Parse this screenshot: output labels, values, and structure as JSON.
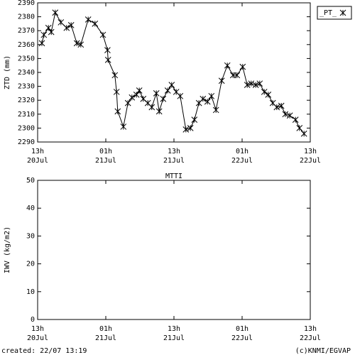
{
  "chart_data": [
    {
      "type": "line",
      "ylabel": "ZTD (mm)",
      "x": [
        0.75,
        1.1,
        1.9,
        2.4,
        3.1,
        4.1,
        5.1,
        5.9,
        6.9,
        7.6,
        8.9,
        10.1,
        11.5,
        12.3,
        12.4,
        13.6,
        13.9,
        14.1,
        15.1,
        15.9,
        16.6,
        17.4,
        17.9,
        18.6,
        19.4,
        20.1,
        20.9,
        21.4,
        22.1,
        22.9,
        23.6,
        24.4,
        25.1,
        26.1,
        26.9,
        27.6,
        28.4,
        29.1,
        29.9,
        30.6,
        31.4,
        32.4,
        33.4,
        34.4,
        35.1,
        36.1,
        36.9,
        37.6,
        38.4,
        39.1,
        39.9,
        40.6,
        41.4,
        42.1,
        42.9,
        43.6,
        44.4,
        45.4,
        46.1,
        46.9
      ],
      "series": [
        {
          "name": "_PT_",
          "color": "#000000",
          "values": [
            2361,
            2367,
            2372,
            2369,
            2383,
            2376,
            2372,
            2374,
            2361,
            2360,
            2378,
            2375,
            2367,
            2356,
            2349,
            2338,
            2326,
            2312,
            2301,
            2318,
            2322,
            2324,
            2327,
            2321,
            2318,
            2315,
            2325,
            2312,
            2321,
            2327,
            2331,
            2326,
            2323,
            2299,
            2300,
            2306,
            2318,
            2321,
            2319,
            2323,
            2313,
            2334,
            2345,
            2338,
            2338,
            2344,
            2331,
            2332,
            2331,
            2332,
            2326,
            2324,
            2318,
            2315,
            2316,
            2310,
            2309,
            2306,
            2300,
            2296
          ]
        }
      ],
      "xlim": [
        0,
        48
      ],
      "xticks": [
        {
          "value": 0,
          "label": [
            "13h",
            "20Jul"
          ]
        },
        {
          "value": 12,
          "label": [
            "01h",
            "21Jul"
          ]
        },
        {
          "value": 24,
          "label": [
            "13h",
            "21Jul"
          ]
        },
        {
          "value": 36,
          "label": [
            "01h",
            "22Jul"
          ]
        },
        {
          "value": 48,
          "label": [
            "13h",
            "22Jul"
          ]
        }
      ],
      "ylim": [
        2290,
        2390
      ],
      "yticks": [
        2290,
        2300,
        2310,
        2320,
        2330,
        2340,
        2350,
        2360,
        2370,
        2380,
        2390
      ],
      "legend": "right"
    },
    {
      "type": "line",
      "title": "MTTI",
      "ylabel": "IWV (kg/m2)",
      "x": [],
      "series": [],
      "xlim": [
        0,
        48
      ],
      "xticks": [
        {
          "value": 0,
          "label": [
            "13h",
            "20Jul"
          ]
        },
        {
          "value": 12,
          "label": [
            "01h",
            "21Jul"
          ]
        },
        {
          "value": 24,
          "label": [
            "13h",
            "21Jul"
          ]
        },
        {
          "value": 36,
          "label": [
            "01h",
            "22Jul"
          ]
        },
        {
          "value": 48,
          "label": [
            "13h",
            "22Jul"
          ]
        }
      ],
      "ylim": [
        0,
        50
      ],
      "yticks": [
        0,
        10,
        20,
        30,
        40,
        50
      ]
    }
  ],
  "footer": {
    "created": "created: 22/07 13:19",
    "credit": "(c)KNMI/EGVAP"
  }
}
